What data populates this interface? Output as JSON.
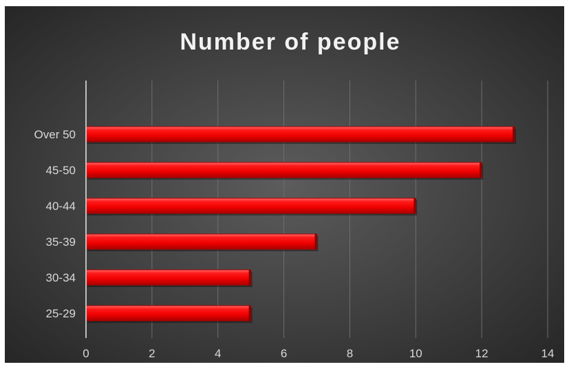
{
  "chart_data": {
    "type": "bar",
    "orientation": "horizontal",
    "title": "Number of people",
    "categories": [
      "25-29",
      "30-34",
      "35-39",
      "40-44",
      "45-50",
      "Over 50"
    ],
    "values": [
      5,
      5,
      7,
      10,
      12,
      13
    ],
    "xlim": [
      0,
      14
    ],
    "xticks": [
      "0",
      "2",
      "4",
      "6",
      "8",
      "10",
      "12",
      "14"
    ],
    "grid": true,
    "legend": "none",
    "colors": {
      "bar": "#ff0000",
      "bar_dark": "#b00000",
      "background": "#404040",
      "grid": "#6e6e6e",
      "axis": "#bfbfbf",
      "text": "#d9d9d9",
      "title": "#f2f2f2"
    }
  }
}
